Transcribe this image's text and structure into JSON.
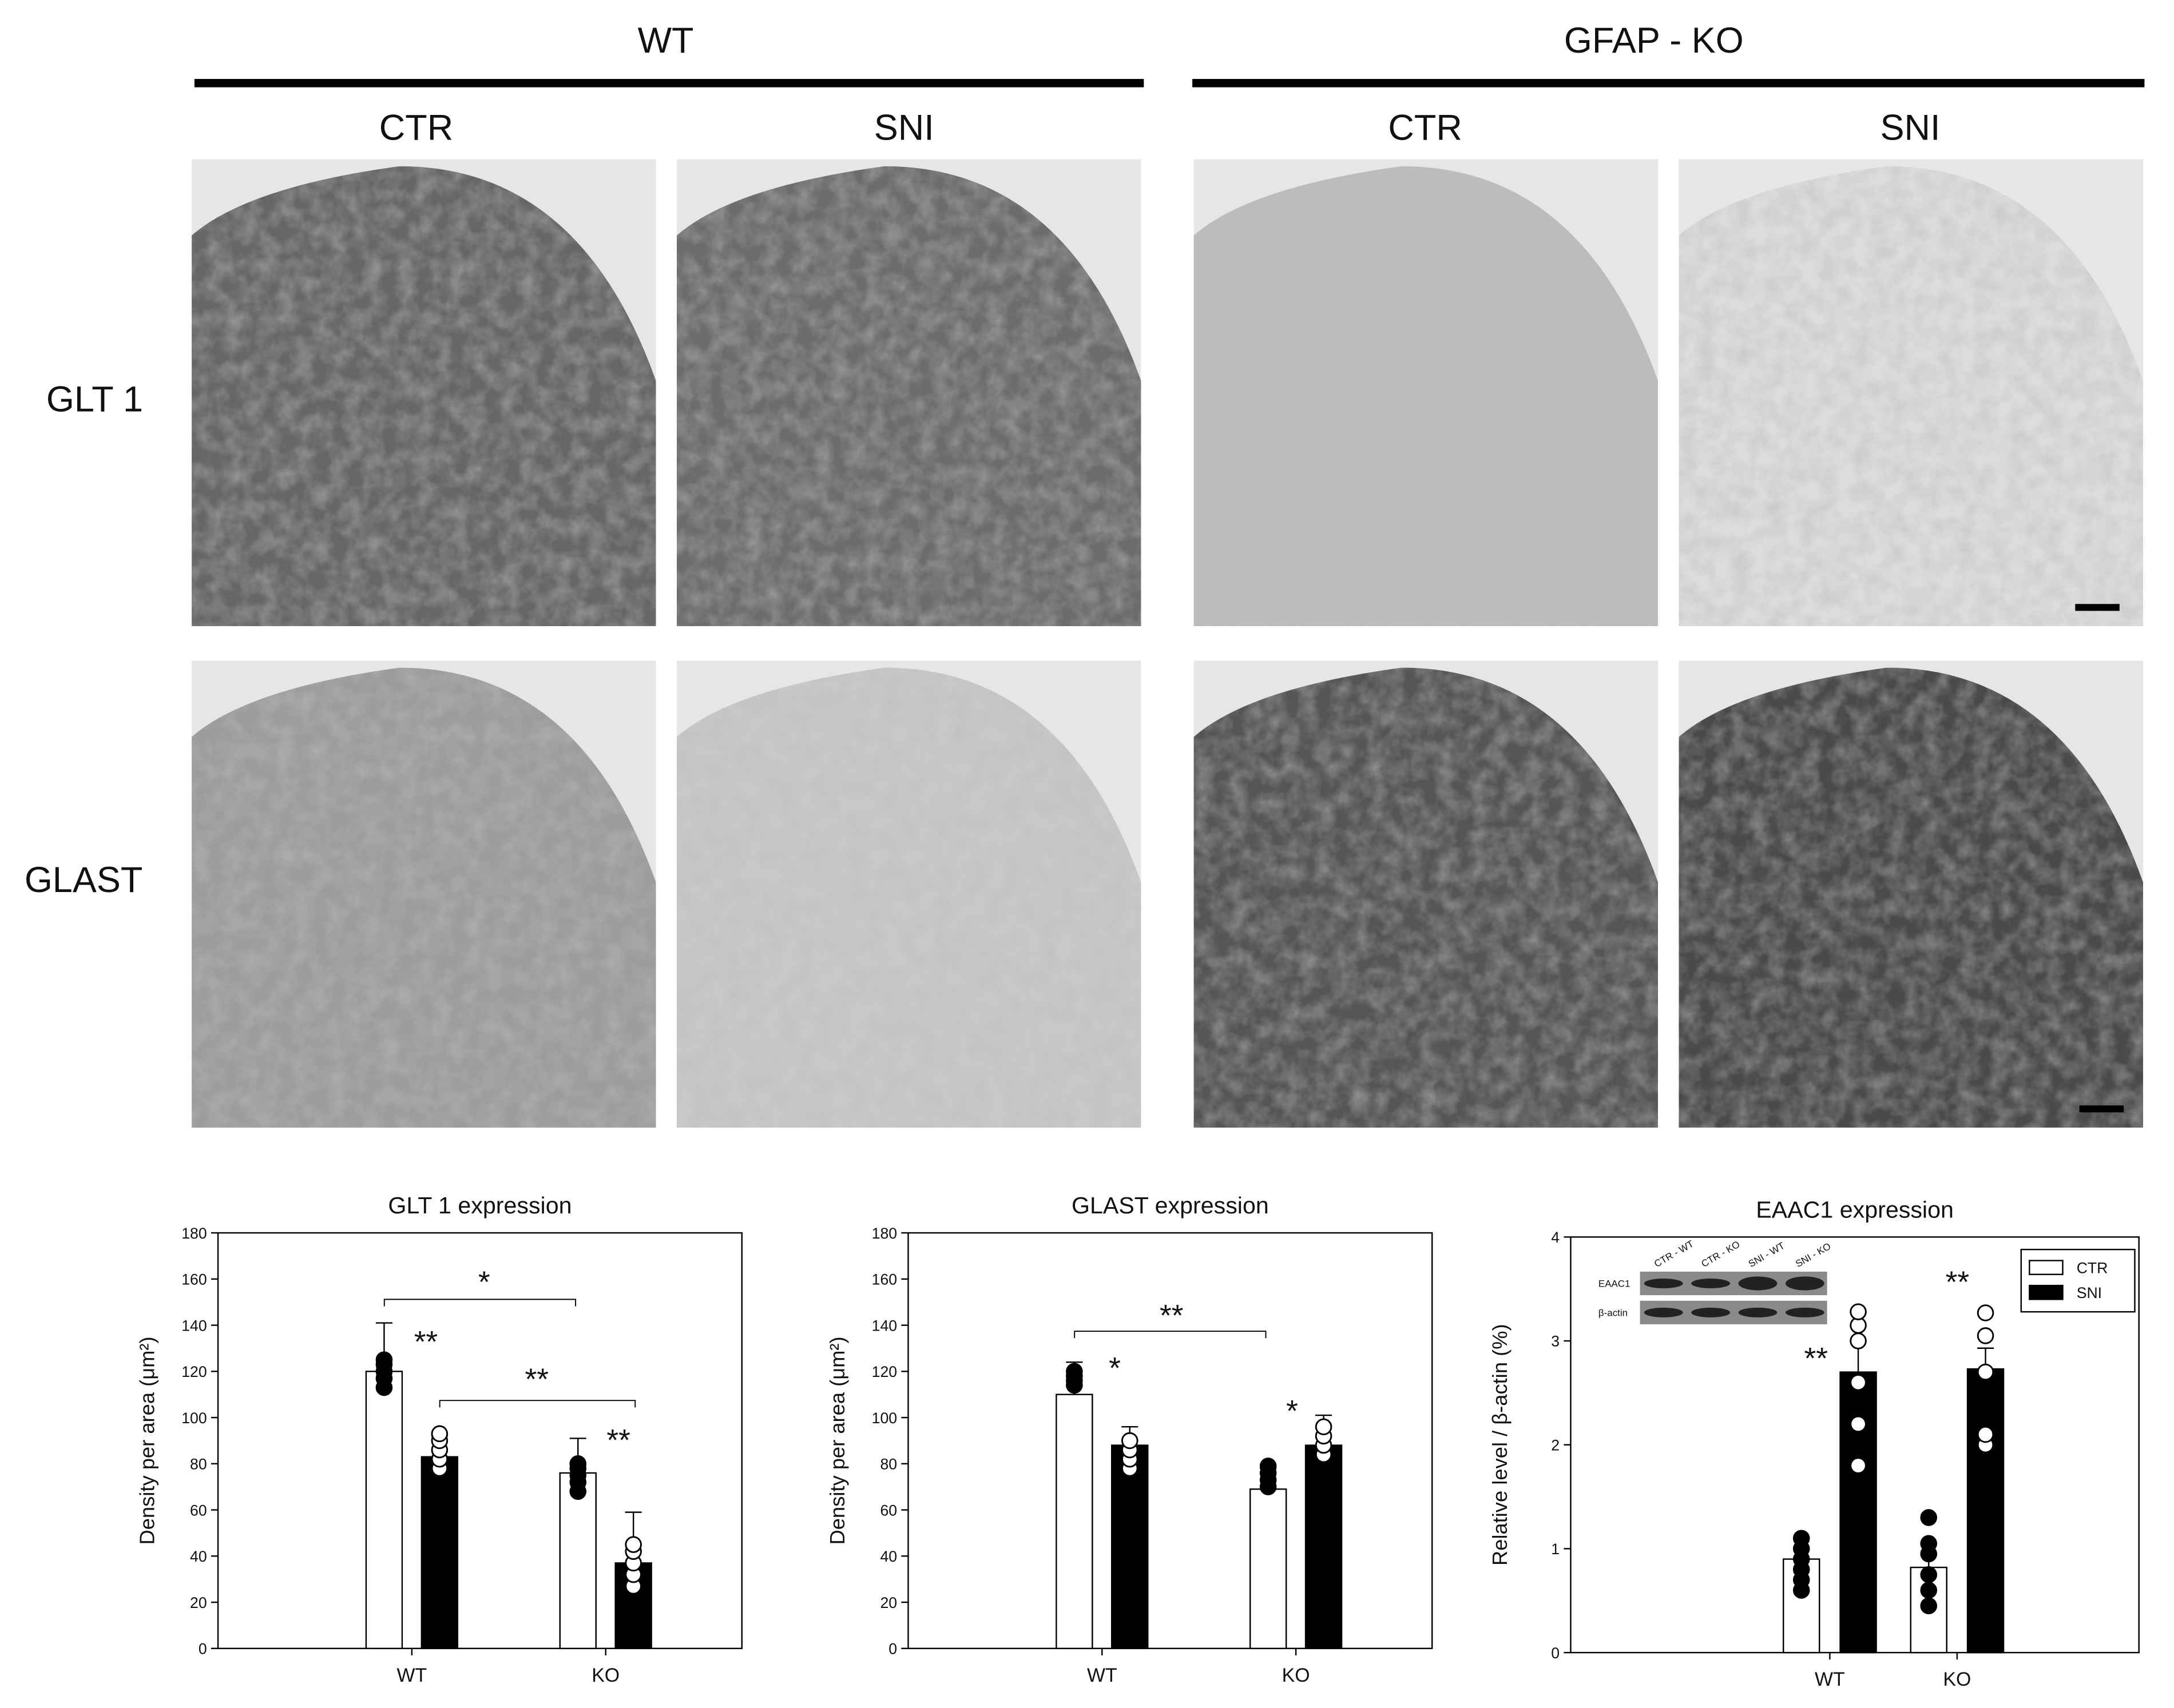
{
  "figure": {
    "groups": [
      "WT",
      "GFAP - KO"
    ],
    "columns": [
      "CTR",
      "SNI",
      "CTR",
      "SNI"
    ],
    "rows": [
      "GLT 1",
      "GLAST"
    ]
  },
  "chart_data": [
    {
      "type": "bar",
      "title": "GLT 1 expression",
      "y_label": "Density per area (μm²)",
      "categories": [
        "WT",
        "KO"
      ],
      "series": [
        {
          "name": "CTR",
          "color": "#ffffff",
          "point_color": "#000000",
          "values": [
            120,
            76
          ],
          "errors": [
            21,
            15
          ],
          "points": [
            [
              113,
              117,
              120,
              123,
              125
            ],
            [
              68,
              72,
              75,
              78,
              80
            ]
          ]
        },
        {
          "name": "SNI",
          "color": "#000000",
          "point_color": "#ffffff",
          "values": [
            83,
            37
          ],
          "errors": [
            9,
            22
          ],
          "points": [
            [
              78,
              82,
              86,
              90,
              93
            ],
            [
              27,
              32,
              37,
              42,
              45
            ]
          ]
        }
      ],
      "ylim": [
        0,
        180
      ],
      "yticks": [
        0,
        20,
        40,
        60,
        80,
        100,
        120,
        140,
        160,
        180
      ],
      "annotations": [
        "*",
        "**",
        "**",
        "**"
      ]
    },
    {
      "type": "bar",
      "title": "GLAST expression",
      "y_label": "Density per area (μm²)",
      "categories": [
        "WT",
        "KO"
      ],
      "series": [
        {
          "name": "CTR",
          "color": "#ffffff",
          "point_color": "#000000",
          "values": [
            110,
            69
          ],
          "errors": [
            14,
            9
          ],
          "points": [
            [
              114,
              116,
              118,
              120
            ],
            [
              70,
              73,
              76,
              79
            ]
          ]
        },
        {
          "name": "SNI",
          "color": "#000000",
          "point_color": "#ffffff",
          "values": [
            88,
            88
          ],
          "errors": [
            8,
            13
          ],
          "points": [
            [
              78,
              82,
              86,
              90
            ],
            [
              84,
              88,
              92,
              96
            ]
          ]
        }
      ],
      "ylim": [
        0,
        180
      ],
      "yticks": [
        0,
        20,
        40,
        60,
        80,
        100,
        120,
        140,
        160,
        180
      ],
      "annotations": [
        "**",
        "*",
        "*"
      ]
    },
    {
      "type": "bar",
      "title": "EAAC1 expression",
      "y_label": "Relative level / β-actin (%)",
      "categories": [
        "WT",
        "KO"
      ],
      "series": [
        {
          "name": "CTR",
          "color": "#ffffff",
          "point_color": "#000000",
          "values": [
            0.9,
            0.82
          ],
          "errors": [
            0.1,
            0.12
          ],
          "points": [
            [
              0.6,
              0.7,
              0.8,
              0.9,
              1.0,
              1.1
            ],
            [
              0.45,
              0.6,
              0.75,
              0.95,
              1.05,
              1.3
            ]
          ]
        },
        {
          "name": "SNI",
          "color": "#000000",
          "point_color": "#ffffff",
          "values": [
            2.7,
            2.73
          ],
          "errors": [
            0.3,
            0.2
          ],
          "points": [
            [
              1.8,
              2.2,
              2.6,
              3.0,
              3.15,
              3.28
            ],
            [
              2.0,
              2.1,
              2.7,
              3.05,
              3.27
            ]
          ]
        }
      ],
      "ylim": [
        0,
        4
      ],
      "yticks": [
        0,
        1,
        2,
        3,
        4
      ],
      "legend": "upper right",
      "annotations": [
        "**",
        "**"
      ],
      "inset": {
        "lanes": [
          "CTR - WT",
          "CTR - KO",
          "SNI - WT",
          "SNI - KO"
        ],
        "bands": [
          "EAAC1",
          "β-actin"
        ]
      }
    }
  ]
}
